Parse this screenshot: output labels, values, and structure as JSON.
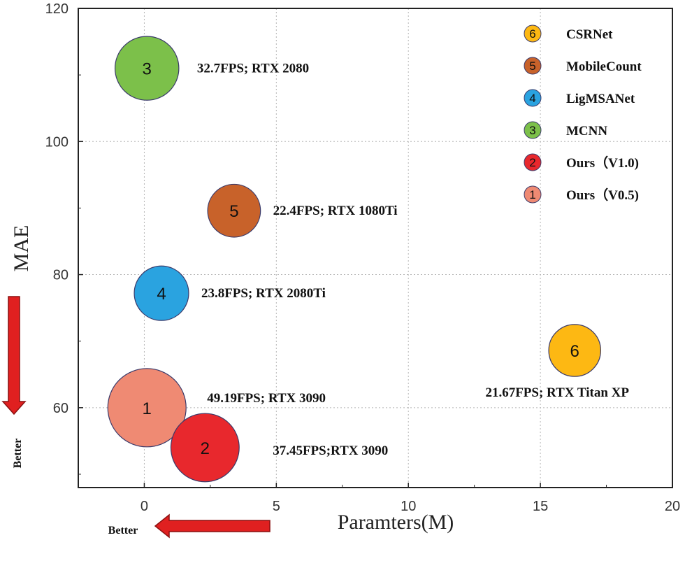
{
  "chart_data": {
    "type": "scatter",
    "xlabel": "Paramters(M)",
    "ylabel": "MAE",
    "xlim": [
      -2.5,
      20
    ],
    "ylim": [
      48,
      120
    ],
    "xticks": [
      0,
      5,
      10,
      15,
      20
    ],
    "yticks": [
      60,
      80,
      100,
      120
    ],
    "grid": true,
    "legend_position": "top-right",
    "points": [
      {
        "id": "1",
        "name": "Ours（V0.5)",
        "x": 0.1,
        "y": 60,
        "size": 49.19,
        "annotation": "49.19FPS; RTX 3090",
        "color": "#ef8a73"
      },
      {
        "id": "2",
        "name": "Ours（V1.0)",
        "x": 2.3,
        "y": 54,
        "size": 37.45,
        "annotation": "37.45FPS;RTX 3090",
        "color": "#e8282d"
      },
      {
        "id": "3",
        "name": "MCNN",
        "x": 0.1,
        "y": 111,
        "size": 32.7,
        "annotation": "32.7FPS; RTX 2080",
        "color": "#7cc04a"
      },
      {
        "id": "4",
        "name": "LigMSANet",
        "x": 0.65,
        "y": 77.2,
        "size": 23.8,
        "annotation": "23.8FPS; RTX 2080Ti",
        "color": "#2aa3e0"
      },
      {
        "id": "5",
        "name": "MobileCount",
        "x": 3.4,
        "y": 89.6,
        "size": 22.4,
        "annotation": "22.4FPS; RTX 1080Ti",
        "color": "#c8622a"
      },
      {
        "id": "6",
        "name": "CSRNet",
        "x": 16.3,
        "y": 68.6,
        "size": 21.67,
        "annotation": "21.67FPS; RTX Titan XP",
        "color": "#fdb813"
      }
    ],
    "legend": [
      {
        "num": "6",
        "label": "CSRNet",
        "color": "#fdb813"
      },
      {
        "num": "5",
        "label": "MobileCount",
        "color": "#c8622a"
      },
      {
        "num": "4",
        "label": "LigMSANet",
        "color": "#2aa3e0"
      },
      {
        "num": "3",
        "label": "MCNN",
        "color": "#7cc04a"
      },
      {
        "num": "2",
        "label": "Ours（V1.0)",
        "color": "#e8282d"
      },
      {
        "num": "1",
        "label": "Ours（V0.5)",
        "color": "#ef8a73"
      }
    ]
  },
  "better": {
    "y_label": "Better",
    "x_label": "Better",
    "arrow_color": "#e02020"
  }
}
